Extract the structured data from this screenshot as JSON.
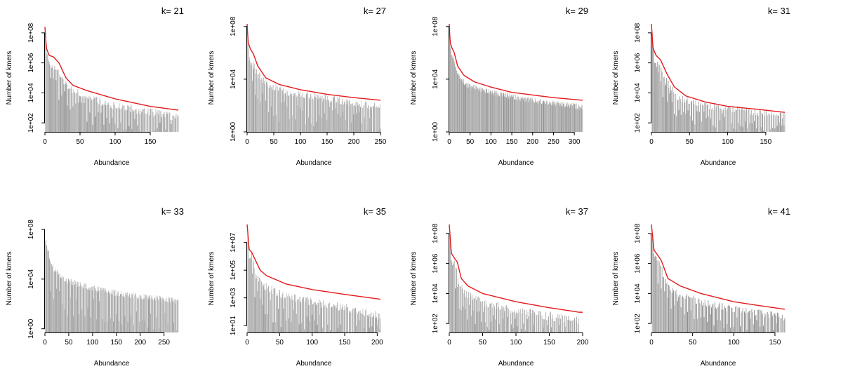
{
  "figure": {
    "layout": "2x4",
    "bar_color": "#8c8c8c",
    "fit_color": "#e41a1c",
    "background": "#ffffff"
  },
  "chart_data": [
    {
      "type": "bar",
      "title": "k= 21",
      "xlabel": "Abundance",
      "ylabel": "Number of kmers",
      "log_y": true,
      "xlim": [
        0,
        190
      ],
      "ylim_log10": [
        1.4,
        8.6
      ],
      "xticks": [
        0,
        50,
        100,
        150
      ],
      "yticks": [
        "1e+02",
        "1e+04",
        "1e+06",
        "1e+08"
      ],
      "ytick_values": [
        2,
        4,
        6,
        8
      ],
      "bars": {
        "n": 190,
        "anchors": [
          [
            1,
            8.3
          ],
          [
            3,
            6.9
          ],
          [
            8,
            6.2
          ],
          [
            15,
            6.0
          ],
          [
            25,
            5.2
          ],
          [
            35,
            4.6
          ],
          [
            60,
            4.0
          ],
          [
            100,
            3.4
          ],
          [
            150,
            3.0
          ],
          [
            190,
            2.6
          ]
        ],
        "noise": 0.55,
        "gap_every": 4,
        "gap_drop": 1.2
      },
      "fit": {
        "anchors": [
          [
            0,
            8.4
          ],
          [
            2,
            7.0
          ],
          [
            6,
            6.5
          ],
          [
            12,
            6.4
          ],
          [
            20,
            6.0
          ],
          [
            30,
            5.0
          ],
          [
            40,
            4.5
          ],
          [
            60,
            4.15
          ],
          [
            100,
            3.6
          ],
          [
            150,
            3.1
          ],
          [
            190,
            2.85
          ]
        ]
      }
    },
    {
      "type": "bar",
      "title": "k= 27",
      "xlabel": "Abundance",
      "ylabel": "Number of kmers",
      "log_y": true,
      "xlim": [
        0,
        250
      ],
      "ylim_log10": [
        0,
        8.2
      ],
      "xticks": [
        0,
        50,
        100,
        150,
        200,
        250
      ],
      "yticks": [
        "1e+00",
        "1e+04",
        "1e+08"
      ],
      "ytick_values": [
        0,
        4,
        8
      ],
      "bars": {
        "n": 250,
        "anchors": [
          [
            1,
            7.7
          ],
          [
            4,
            6.0
          ],
          [
            10,
            5.5
          ],
          [
            20,
            4.7
          ],
          [
            40,
            3.8
          ],
          [
            80,
            3.3
          ],
          [
            150,
            2.8
          ],
          [
            250,
            2.2
          ]
        ],
        "noise": 0.6,
        "gap_every": 5,
        "gap_drop": 1.5
      },
      "fit": {
        "anchors": [
          [
            0,
            8.2
          ],
          [
            2,
            6.8
          ],
          [
            6,
            6.3
          ],
          [
            12,
            5.9
          ],
          [
            20,
            5.0
          ],
          [
            35,
            4.1
          ],
          [
            60,
            3.6
          ],
          [
            100,
            3.2
          ],
          [
            150,
            2.85
          ],
          [
            200,
            2.6
          ],
          [
            250,
            2.4
          ]
        ]
      }
    },
    {
      "type": "bar",
      "title": "k= 29",
      "xlabel": "Abundance",
      "ylabel": "Number of kmers",
      "log_y": true,
      "xlim": [
        0,
        320
      ],
      "ylim_log10": [
        0,
        8.2
      ],
      "xticks": [
        0,
        50,
        100,
        150,
        200,
        250,
        300
      ],
      "yticks": [
        "1e+00",
        "1e+04",
        "1e+08"
      ],
      "ytick_values": [
        0,
        4,
        8
      ],
      "bars": {
        "n": 320,
        "anchors": [
          [
            1,
            7.8
          ],
          [
            4,
            6.2
          ],
          [
            10,
            5.8
          ],
          [
            20,
            4.6
          ],
          [
            40,
            3.8
          ],
          [
            100,
            3.2
          ],
          [
            200,
            2.6
          ],
          [
            320,
            2.1
          ]
        ],
        "noise": 0.45,
        "gap_every": 0,
        "gap_drop": 0
      },
      "fit": {
        "anchors": [
          [
            0,
            8.2
          ],
          [
            2,
            6.8
          ],
          [
            6,
            6.4
          ],
          [
            12,
            6.0
          ],
          [
            20,
            5.0
          ],
          [
            35,
            4.3
          ],
          [
            60,
            3.8
          ],
          [
            100,
            3.4
          ],
          [
            150,
            3.0
          ],
          [
            250,
            2.6
          ],
          [
            320,
            2.4
          ]
        ]
      }
    },
    {
      "type": "bar",
      "title": "k= 31",
      "xlabel": "Abundance",
      "ylabel": "Number of kmers",
      "log_y": true,
      "xlim": [
        0,
        175
      ],
      "ylim_log10": [
        1.4,
        8.6
      ],
      "xticks": [
        0,
        50,
        100,
        150
      ],
      "yticks": [
        "1e+02",
        "1e+04",
        "1e+06",
        "1e+08"
      ],
      "ytick_values": [
        2,
        4,
        6,
        8
      ],
      "bars": {
        "n": 175,
        "anchors": [
          [
            1,
            8.2
          ],
          [
            4,
            6.4
          ],
          [
            10,
            6.0
          ],
          [
            20,
            5.0
          ],
          [
            35,
            4.0
          ],
          [
            60,
            3.5
          ],
          [
            100,
            3.2
          ],
          [
            175,
            2.7
          ]
        ],
        "noise": 0.5,
        "gap_every": 3,
        "gap_drop": 1.0
      },
      "fit": {
        "anchors": [
          [
            0,
            8.6
          ],
          [
            2,
            7.0
          ],
          [
            6,
            6.5
          ],
          [
            12,
            6.2
          ],
          [
            20,
            5.3
          ],
          [
            30,
            4.4
          ],
          [
            45,
            3.8
          ],
          [
            70,
            3.4
          ],
          [
            100,
            3.1
          ],
          [
            140,
            2.9
          ],
          [
            175,
            2.7
          ]
        ]
      }
    },
    {
      "type": "bar",
      "title": "k= 33",
      "xlabel": "Abundance",
      "ylabel": "Number of kmers",
      "log_y": true,
      "xlim": [
        0,
        280
      ],
      "ylim_log10": [
        -0.3,
        8.4
      ],
      "xticks": [
        0,
        50,
        100,
        150,
        200,
        250
      ],
      "yticks": [
        "1e+00",
        "1e+04",
        "1e+08"
      ],
      "ytick_values": [
        0,
        4,
        8
      ],
      "bars": {
        "n": 280,
        "anchors": [
          [
            1,
            7.3
          ],
          [
            5,
            6.8
          ],
          [
            10,
            6.0
          ],
          [
            20,
            5.0
          ],
          [
            40,
            4.2
          ],
          [
            80,
            3.7
          ],
          [
            150,
            3.1
          ],
          [
            280,
            2.5
          ]
        ],
        "noise": 0.5,
        "gap_every": 6,
        "gap_drop": 1.8
      },
      "fit": null
    },
    {
      "type": "bar",
      "title": "k= 35",
      "xlabel": "Abundance",
      "ylabel": "Number of kmers",
      "log_y": true,
      "xlim": [
        0,
        205
      ],
      "ylim_log10": [
        0.5,
        8.3
      ],
      "xticks": [
        0,
        50,
        100,
        150,
        200
      ],
      "yticks": [
        "1e+01",
        "1e+03",
        "1e+05",
        "1e+07"
      ],
      "ytick_values": [
        1,
        3,
        5,
        7
      ],
      "bars": {
        "n": 205,
        "anchors": [
          [
            1,
            7.8
          ],
          [
            3,
            6.4
          ],
          [
            8,
            6.2
          ],
          [
            15,
            4.8
          ],
          [
            25,
            4.2
          ],
          [
            50,
            3.6
          ],
          [
            100,
            3.0
          ],
          [
            150,
            2.6
          ],
          [
            205,
            2.0
          ]
        ],
        "noise": 0.6,
        "gap_every": 4,
        "gap_drop": 1.5
      },
      "fit": {
        "anchors": [
          [
            0,
            8.4
          ],
          [
            3,
            6.5
          ],
          [
            7,
            6.3
          ],
          [
            12,
            5.8
          ],
          [
            20,
            5.0
          ],
          [
            30,
            4.6
          ],
          [
            60,
            4.0
          ],
          [
            100,
            3.6
          ],
          [
            150,
            3.25
          ],
          [
            205,
            2.9
          ]
        ]
      }
    },
    {
      "type": "bar",
      "title": "k= 37",
      "xlabel": "Abundance",
      "ylabel": "Number of kmers",
      "log_y": true,
      "xlim": [
        0,
        200
      ],
      "ylim_log10": [
        1.4,
        8.6
      ],
      "xticks": [
        0,
        50,
        100,
        150,
        200
      ],
      "yticks": [
        "1e+02",
        "1e+04",
        "1e+06",
        "1e+08"
      ],
      "ytick_values": [
        2,
        4,
        6,
        8
      ],
      "bars": {
        "n": 195,
        "anchors": [
          [
            1,
            8.2
          ],
          [
            3,
            6.6
          ],
          [
            8,
            6.3
          ],
          [
            15,
            5.0
          ],
          [
            25,
            4.3
          ],
          [
            50,
            3.7
          ],
          [
            100,
            3.2
          ],
          [
            150,
            2.8
          ],
          [
            195,
            2.5
          ]
        ],
        "noise": 0.6,
        "gap_every": 3,
        "gap_drop": 1.3
      },
      "fit": {
        "anchors": [
          [
            0,
            8.6
          ],
          [
            3,
            6.7
          ],
          [
            7,
            6.4
          ],
          [
            12,
            6.1
          ],
          [
            18,
            5.0
          ],
          [
            28,
            4.5
          ],
          [
            50,
            4.0
          ],
          [
            100,
            3.45
          ],
          [
            150,
            3.05
          ],
          [
            195,
            2.75
          ]
        ]
      }
    },
    {
      "type": "bar",
      "title": "k= 41",
      "xlabel": "Abundance",
      "ylabel": "Number of kmers",
      "log_y": true,
      "xlim": [
        0,
        162
      ],
      "ylim_log10": [
        1.4,
        8.6
      ],
      "xticks": [
        0,
        50,
        100,
        150
      ],
      "yticks": [
        "1e+02",
        "1e+04",
        "1e+06",
        "1e+08"
      ],
      "ytick_values": [
        2,
        4,
        6,
        8
      ],
      "bars": {
        "n": 162,
        "anchors": [
          [
            1,
            7.9
          ],
          [
            4,
            6.6
          ],
          [
            10,
            6.2
          ],
          [
            20,
            4.7
          ],
          [
            35,
            4.2
          ],
          [
            60,
            3.7
          ],
          [
            100,
            3.2
          ],
          [
            162,
            2.7
          ]
        ],
        "noise": 0.5,
        "gap_every": 4,
        "gap_drop": 1.0
      },
      "fit": {
        "anchors": [
          [
            0,
            8.6
          ],
          [
            3,
            6.9
          ],
          [
            7,
            6.6
          ],
          [
            12,
            6.2
          ],
          [
            20,
            5.0
          ],
          [
            35,
            4.5
          ],
          [
            60,
            4.0
          ],
          [
            100,
            3.45
          ],
          [
            130,
            3.2
          ],
          [
            162,
            2.95
          ]
        ]
      }
    }
  ]
}
